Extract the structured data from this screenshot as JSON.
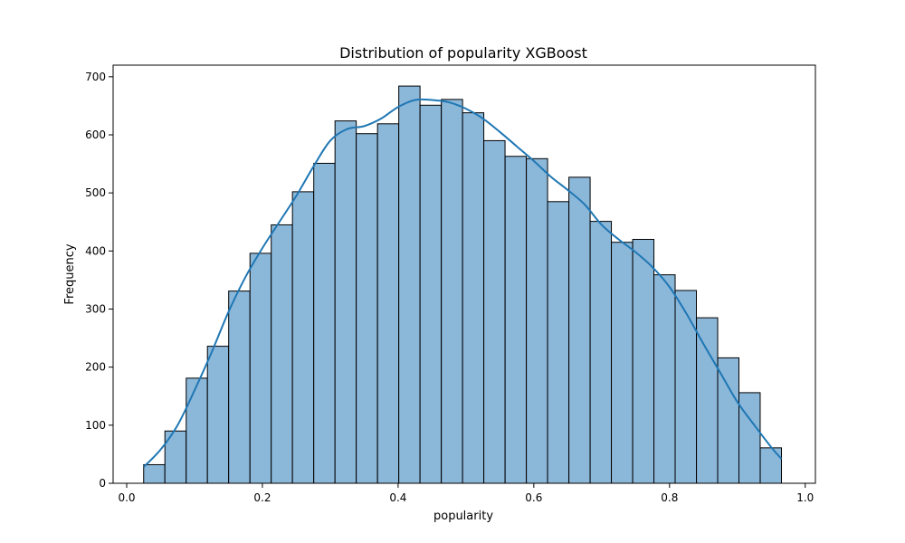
{
  "colors": {
    "bar_fill": "#8bb7d9",
    "bar_edge": "#000000",
    "kde_line": "#1f77b4",
    "axes": "#000000",
    "background": "#ffffff"
  },
  "chart_data": {
    "type": "bar",
    "subtype": "histogram_with_kde",
    "title": "Distribution of popularity XGBoost",
    "xlabel": "popularity",
    "ylabel": "Frequency",
    "xlim": [
      -0.02,
      1.015
    ],
    "ylim": [
      0,
      720
    ],
    "grid": false,
    "legend": "none",
    "x_ticks": [
      0.0,
      0.2,
      0.4,
      0.6,
      0.8,
      1.0
    ],
    "x_tick_labels": [
      "0.0",
      "0.2",
      "0.4",
      "0.6",
      "0.8",
      "1.0"
    ],
    "y_ticks": [
      0,
      100,
      200,
      300,
      400,
      500,
      600,
      700
    ],
    "y_tick_labels": [
      "0",
      "100",
      "200",
      "300",
      "400",
      "500",
      "600",
      "700"
    ],
    "bins": {
      "left_edges": [
        0.025,
        0.0563,
        0.0877,
        0.119,
        0.1503,
        0.1817,
        0.213,
        0.2443,
        0.2757,
        0.307,
        0.3383,
        0.3697,
        0.401,
        0.4323,
        0.4637,
        0.495,
        0.5263,
        0.5577,
        0.589,
        0.6203,
        0.6517,
        0.683,
        0.7143,
        0.7457,
        0.777,
        0.8083,
        0.8397,
        0.871,
        0.9023,
        0.9337
      ],
      "width": 0.0313,
      "values": [
        32,
        90,
        181,
        236,
        331,
        396,
        445,
        502,
        551,
        624,
        602,
        619,
        684,
        651,
        661,
        638,
        590,
        563,
        559,
        485,
        527,
        451,
        415,
        420,
        359,
        332,
        285,
        216,
        156,
        61
      ]
    },
    "kde": {
      "x": [
        0.025,
        0.05,
        0.075,
        0.1,
        0.125,
        0.15,
        0.175,
        0.2,
        0.225,
        0.25,
        0.275,
        0.3,
        0.325,
        0.35,
        0.375,
        0.4,
        0.425,
        0.45,
        0.475,
        0.5,
        0.525,
        0.55,
        0.575,
        0.6,
        0.625,
        0.65,
        0.675,
        0.7,
        0.725,
        0.75,
        0.775,
        0.8,
        0.825,
        0.85,
        0.875,
        0.9,
        0.925,
        0.95,
        0.965
      ],
      "y": [
        28,
        58,
        100,
        160,
        225,
        295,
        355,
        405,
        450,
        495,
        545,
        590,
        610,
        615,
        628,
        648,
        660,
        660,
        656,
        645,
        628,
        605,
        580,
        555,
        528,
        505,
        480,
        445,
        420,
        398,
        372,
        338,
        292,
        240,
        190,
        140,
        100,
        62,
        42
      ]
    }
  }
}
